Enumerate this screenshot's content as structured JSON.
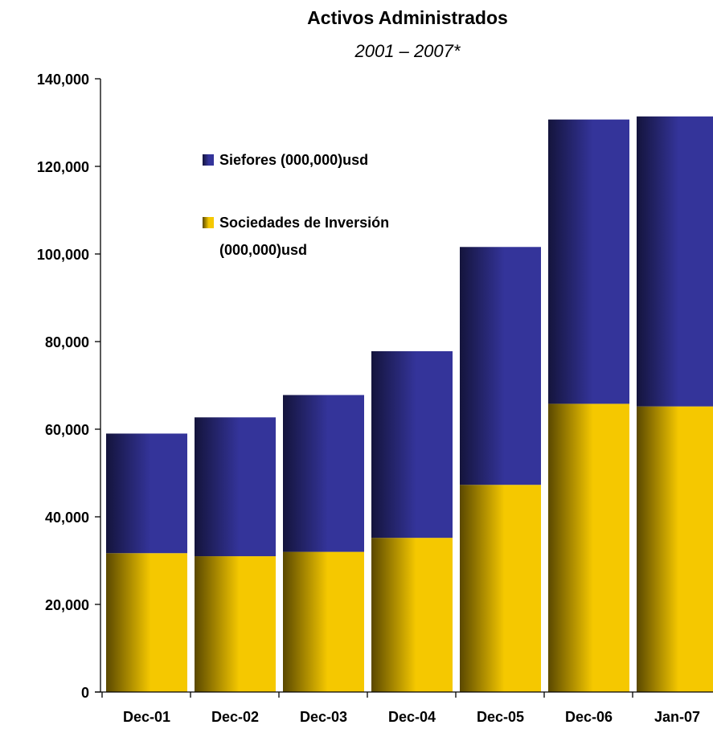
{
  "chart_data": {
    "type": "bar",
    "stacked": true,
    "title": "Activos Administrados",
    "subtitle": "2001 – 2007*",
    "categories": [
      "Dec-01",
      "Dec-02",
      "Dec-03",
      "Dec-04",
      "Dec-05",
      "Dec-06",
      "Jan-07"
    ],
    "series": [
      {
        "name": "Sociedades de Inversión (000,000)usd",
        "legend_lines": [
          "Sociedades de Inversión",
          "(000,000)usd"
        ],
        "color": "#f5c800",
        "shade": "#5a4800",
        "values": [
          31700,
          31000,
          32000,
          35200,
          47300,
          65800,
          65200
        ]
      },
      {
        "name": "Siefores (000,000)usd",
        "legend_lines": [
          "Siefores (000,000)usd"
        ],
        "color": "#34349a",
        "shade": "#14143c",
        "values": [
          27300,
          31700,
          35800,
          42600,
          54300,
          64900,
          66200
        ]
      }
    ],
    "ylim": [
      0,
      140000
    ],
    "yticks": [
      0,
      20000,
      40000,
      60000,
      80000,
      100000,
      120000,
      140000
    ],
    "ytick_labels": [
      "0",
      "20,000",
      "40,000",
      "60,000",
      "80,000",
      "100,000",
      "120,000",
      "140,000"
    ],
    "xlabel": "",
    "ylabel": "",
    "grid": false,
    "legend_position": "upper-left inside plot"
  }
}
